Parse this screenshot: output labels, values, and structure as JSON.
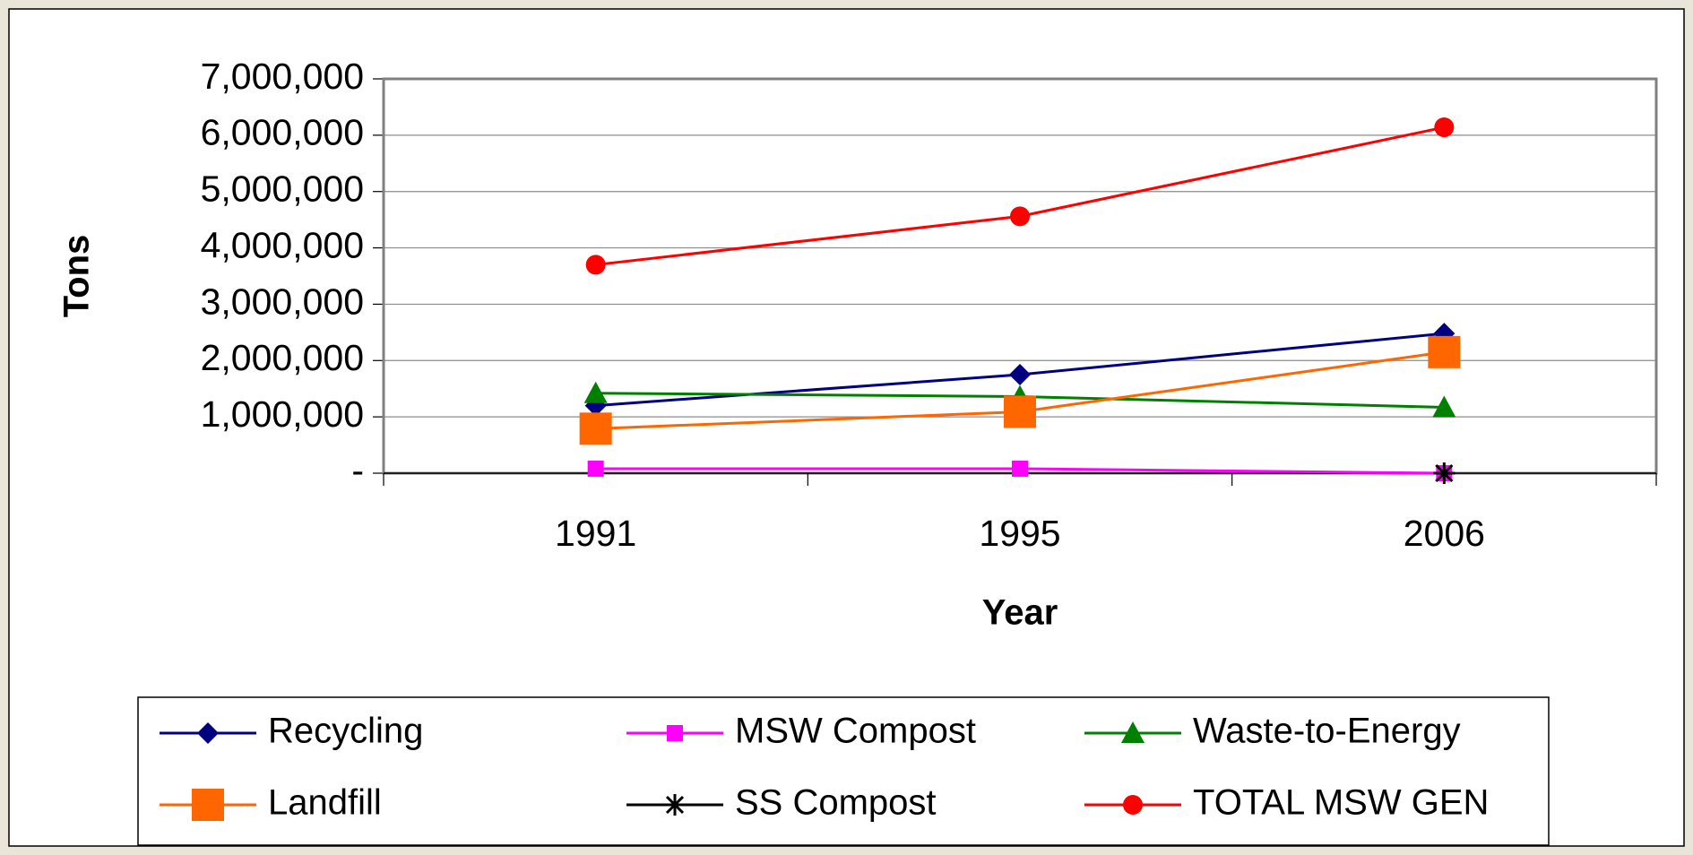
{
  "chart_data": {
    "type": "line",
    "xlabel": "Year",
    "ylabel": "Tons",
    "categories": [
      "1991",
      "1995",
      "2006"
    ],
    "ylim": [
      0,
      7000000
    ],
    "yticks": [
      {
        "value": 0,
        "label": "-"
      },
      {
        "value": 1000000,
        "label": "1,000,000"
      },
      {
        "value": 2000000,
        "label": "2,000,000"
      },
      {
        "value": 3000000,
        "label": "3,000,000"
      },
      {
        "value": 4000000,
        "label": "4,000,000"
      },
      {
        "value": 5000000,
        "label": "5,000,000"
      },
      {
        "value": 6000000,
        "label": "6,000,000"
      },
      {
        "value": 7000000,
        "label": "7,000,000"
      }
    ],
    "grid": true,
    "legend": "bottom",
    "series": [
      {
        "name": "Recycling",
        "color": "#000080",
        "marker": "diamond",
        "values": [
          1200000,
          1750000,
          2480000
        ]
      },
      {
        "name": "MSW Compost",
        "color": "#ff00ff",
        "marker": "square",
        "values": [
          80000,
          80000,
          0
        ]
      },
      {
        "name": "Waste-to-Energy",
        "color": "#008000",
        "marker": "triangle",
        "values": [
          1420000,
          1360000,
          1170000
        ]
      },
      {
        "name": "Landfill",
        "color": "#ff6600",
        "marker": "big-square",
        "values": [
          790000,
          1090000,
          2150000
        ]
      },
      {
        "name": "SS Compost",
        "color": "#000000",
        "marker": "star",
        "values": [
          null,
          null,
          0
        ]
      },
      {
        "name": "TOTAL MSW GEN",
        "color": "#ff0000",
        "marker": "circle",
        "values": [
          3700000,
          4560000,
          6140000
        ]
      }
    ]
  }
}
